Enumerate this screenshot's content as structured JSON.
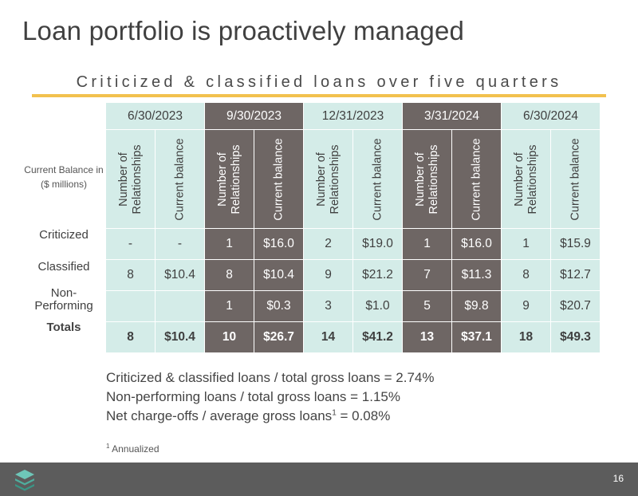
{
  "title": "Loan portfolio is proactively managed",
  "subtitle": "Criticized & classified loans over five quarters",
  "row_header": {
    "balance_note": "Current Balance in ($ millions)"
  },
  "quarters": [
    "6/30/2023",
    "9/30/2023",
    "12/31/2023",
    "3/31/2024",
    "6/30/2024"
  ],
  "column_headers": {
    "relationships": "Number of Relationships",
    "balance": "Current balance"
  },
  "rows": [
    {
      "label": "Criticized",
      "values": [
        "-",
        "-",
        "1",
        "$16.0",
        "2",
        "$19.0",
        "1",
        "$16.0",
        "1",
        "$15.9"
      ]
    },
    {
      "label": "Classified",
      "values": [
        "8",
        "$10.4",
        "8",
        "$10.4",
        "9",
        "$21.2",
        "7",
        "$11.3",
        "8",
        "$12.7"
      ]
    },
    {
      "label": "Non-Performing",
      "label_line1": "Non-",
      "label_line2": "Performing",
      "values": [
        "",
        "",
        "1",
        "$0.3",
        "3",
        "$1.0",
        "5",
        "$9.8",
        "9",
        "$20.7"
      ]
    },
    {
      "label": "Totals",
      "values": [
        "8",
        "$10.4",
        "10",
        "$26.7",
        "14",
        "$41.2",
        "13",
        "$37.1",
        "18",
        "$49.3"
      ]
    }
  ],
  "stats": {
    "line1": "Criticized & classified loans / total gross loans = 2.74%",
    "line2": "Non-performing loans / total gross loans = 1.15%",
    "line3_pre": "Net charge-offs / average gross loans",
    "line3_sup": "1",
    "line3_post": " = 0.08%"
  },
  "footnote": {
    "marker": "1",
    "text": " Annualized"
  },
  "page_number": "16",
  "colors": {
    "light_cell": "#d4ece8",
    "dark_cell": "#6e6664",
    "accent_rule": "#f2c14e",
    "footer": "#5c5c5c"
  },
  "logo_icon": "stacked-layers-icon"
}
